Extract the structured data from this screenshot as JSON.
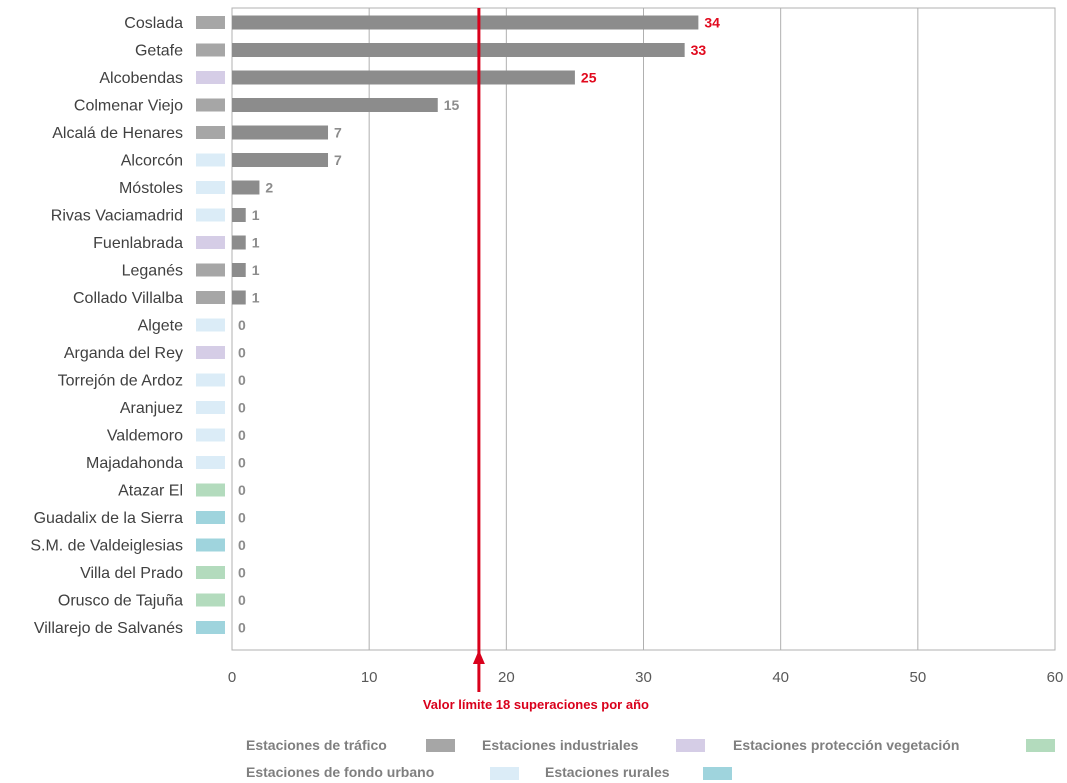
{
  "chart_data": {
    "type": "bar",
    "orientation": "horizontal",
    "categories": [
      "Coslada",
      "Getafe",
      "Alcobendas",
      "Colmenar Viejo",
      "Alcalá de Henares",
      "Alcorcón",
      "Móstoles",
      "Rivas Vaciamadrid",
      "Fuenlabrada",
      "Leganés",
      "Collado Villalba",
      "Algete",
      "Arganda del Rey",
      "Torrejón de Ardoz",
      "Aranjuez",
      "Valdemoro",
      "Majadahonda",
      "Atazar El",
      "Guadalix de la Sierra",
      "S.M. de Valdeiglesias",
      "Villa del Prado",
      "Orusco de Tajuña",
      "Villarejo de Salvanés"
    ],
    "values": [
      34,
      33,
      25,
      15,
      7,
      7,
      2,
      1,
      1,
      1,
      1,
      0,
      0,
      0,
      0,
      0,
      0,
      0,
      0,
      0,
      0,
      0,
      0
    ],
    "station_types": [
      "trafico",
      "trafico",
      "industrial",
      "trafico",
      "trafico",
      "fondo_urbano",
      "fondo_urbano",
      "fondo_urbano",
      "industrial",
      "trafico",
      "trafico",
      "fondo_urbano",
      "industrial",
      "fondo_urbano",
      "fondo_urbano",
      "fondo_urbano",
      "fondo_urbano",
      "vegetacion",
      "rural",
      "rural",
      "vegetacion",
      "vegetacion",
      "rural"
    ],
    "xlim": [
      0,
      60
    ],
    "xticks": [
      0,
      10,
      20,
      30,
      40,
      50,
      60
    ],
    "grid": true,
    "limit_value": 18,
    "limit_label": "Valor límite 18 superaciones por año",
    "legend": [
      {
        "key": "trafico",
        "label": "Estaciones de tráfico",
        "color": "#a6a6a6"
      },
      {
        "key": "industrial",
        "label": "Estaciones industriales",
        "color": "#d5cde6"
      },
      {
        "key": "vegetacion",
        "label": "Estaciones protección vegetación",
        "color": "#b3dbbd"
      },
      {
        "key": "fondo_urbano",
        "label": "Estaciones de fondo urbano",
        "color": "#dbecf7"
      },
      {
        "key": "rural",
        "label": "Estaciones rurales",
        "color": "#9fd4dd"
      }
    ],
    "legend_position": "bottom"
  },
  "colors": {
    "bar": "#8c8c8c",
    "value_above_limit": "#e10a1e",
    "value_below_limit": "#8c8c8c",
    "limit_line": "#d9001b",
    "grid": "#b0b0b0",
    "axis_text": "#595959"
  }
}
